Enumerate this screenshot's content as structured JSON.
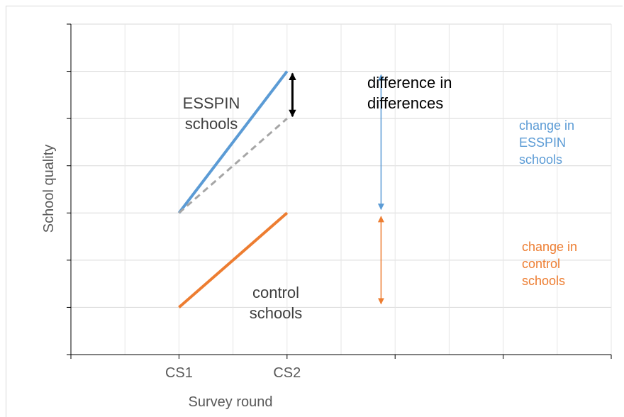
{
  "chart_data": {
    "type": "line",
    "title": "",
    "xlabel": "Survey round",
    "ylabel": "School quality",
    "categories": [
      "CS1",
      "CS2"
    ],
    "xlim": [
      0,
      5
    ],
    "ylim": [
      0,
      7
    ],
    "grid": true,
    "series": [
      {
        "name": "ESSPIN schools",
        "x": [
          1,
          2
        ],
        "values": [
          3,
          6
        ],
        "color": "#5b9bd5",
        "style": "solid"
      },
      {
        "name": "",
        "x": [
          1,
          2
        ],
        "values": [
          3,
          5
        ],
        "color": "#a6a6a6",
        "style": "dashed"
      },
      {
        "name": "control schools",
        "x": [
          1,
          2
        ],
        "values": [
          1,
          3
        ],
        "color": "#ed7d31",
        "style": "solid"
      }
    ],
    "annotations": [
      {
        "id": "esspin-label",
        "lines": [
          "ESSPIN",
          "schools"
        ],
        "color": "#404040"
      },
      {
        "id": "control-label",
        "lines": [
          "control",
          "schools"
        ],
        "color": "#404040"
      },
      {
        "id": "diff-label",
        "lines": [
          "difference in",
          "differences"
        ],
        "color": "#000000"
      },
      {
        "id": "change-esspin-label",
        "lines": [
          "change in",
          "ESSPIN",
          "schools"
        ],
        "color": "#5b9bd5"
      },
      {
        "id": "change-control-label",
        "lines": [
          "change in",
          "control",
          "schools"
        ],
        "color": "#ed7d31"
      }
    ],
    "arrows": [
      {
        "id": "diff-arrow",
        "x": 2.05,
        "from": 5,
        "to": 6,
        "color": "#000000"
      },
      {
        "id": "esspin-change-arrow",
        "x": 2.87,
        "from": 3,
        "to": 6,
        "color": "#5b9bd5"
      },
      {
        "id": "control-change-arrow",
        "x": 2.87,
        "from": 1,
        "to": 3,
        "color": "#ed7d31"
      }
    ]
  }
}
